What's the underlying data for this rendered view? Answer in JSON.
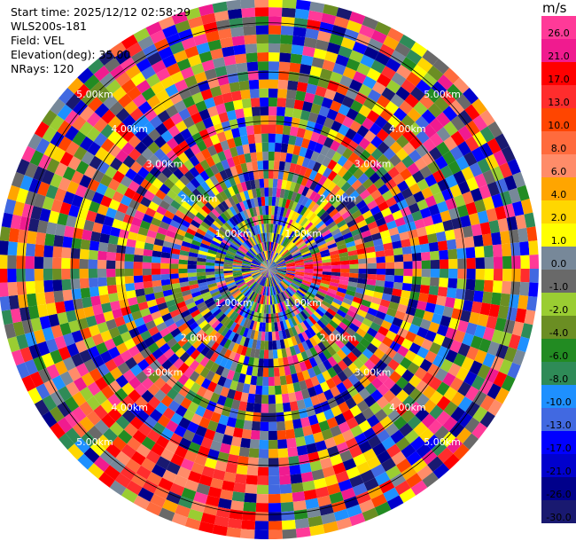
{
  "header": {
    "start_time": "Start time: 2025/12/12 02:58:29",
    "device": "WLS200s-181",
    "field": "Field: VEL",
    "elevation": "Elevation(deg): 35.00",
    "nrays": "NRays: 120"
  },
  "colorbar": {
    "unit": "m/s",
    "ticks": [
      "26.0",
      "21.0",
      "17.0",
      "13.0",
      "10.0",
      "8.0",
      "6.0",
      "4.0",
      "2.0",
      "1.0",
      "0.0",
      "-1.0",
      "-2.0",
      "-4.0",
      "-6.0",
      "-8.0",
      "-10.0",
      "-13.0",
      "-17.0",
      "-21.0",
      "-26.0",
      "-30.0"
    ],
    "colors": [
      "#ff3a98",
      "#f01b8f",
      "#ff0000",
      "#ff2d2d",
      "#ff4500",
      "#ff6b3d",
      "#ff8c69",
      "#ffa500",
      "#ffd700",
      "#ffff00",
      "#778899",
      "#696969",
      "#9acd32",
      "#6b8e23",
      "#228b22",
      "#2e8b57",
      "#1e90ff",
      "#4169e1",
      "#0000ff",
      "#0000cd",
      "#00008b",
      "#191970"
    ]
  },
  "chart_data": {
    "type": "ppi",
    "field": "VEL",
    "units": "m/s",
    "nrays": 120,
    "elevation_deg": 35.0,
    "range_rings_km": [
      {
        "value": 1.0,
        "label": "1.00km"
      },
      {
        "value": 2.0,
        "label": "2.00km"
      },
      {
        "value": 3.0,
        "label": "3.00km"
      },
      {
        "value": 4.0,
        "label": "4.00km"
      },
      {
        "value": 5.0,
        "label": "5.00km"
      }
    ],
    "max_range_km": 5.5,
    "patterns": {
      "near_east_positive_velocity_km": [
        0.4,
        1.6
      ],
      "near_north_east_yellow_km": [
        0.2,
        1.4
      ],
      "south_south_west_positive_velocity_km": [
        4.0,
        5.5
      ]
    }
  }
}
